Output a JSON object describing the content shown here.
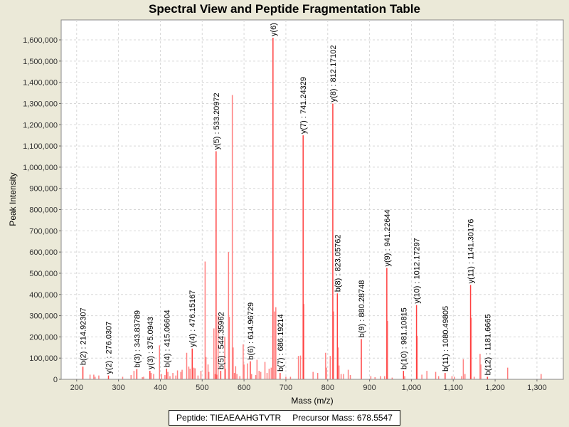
{
  "chart_data": {
    "type": "bar",
    "title": "Spectral View and Peptide Fragmentation Table",
    "xlabel": "Mass (m/z)",
    "ylabel": "Peak Intensity",
    "xlim": [
      163,
      1363
    ],
    "ylim": [
      0,
      1694000
    ],
    "grid": true,
    "xticks": [
      200,
      300,
      400,
      500,
      600,
      700,
      800,
      900,
      1000,
      1100,
      1200,
      1300
    ],
    "xtick_labels": [
      "200",
      "300",
      "400",
      "500",
      "600",
      "700",
      "800",
      "900",
      "1,000",
      "1,100",
      "1,200",
      "1,300"
    ],
    "yticks": [
      0,
      100000,
      200000,
      300000,
      400000,
      500000,
      600000,
      700000,
      800000,
      900000,
      1000000,
      1100000,
      1200000,
      1300000,
      1400000,
      1500000,
      1600000
    ],
    "ytick_labels": [
      "0",
      "100,000",
      "200,000",
      "300,000",
      "400,000",
      "500,000",
      "600,000",
      "700,000",
      "800,000",
      "900,000",
      "1,000,000",
      "1,100,000",
      "1,200,000",
      "1,300,000",
      "1,400,000",
      "1,500,000",
      "1,600,000"
    ],
    "peak_color": "#ff4040",
    "labeled_peaks": [
      {
        "mz": 214.92307,
        "intensity": 60000,
        "label": "b(2) : 214.92307"
      },
      {
        "mz": 276.0307,
        "intensity": 18000,
        "label": "y(2) : 276.0307"
      },
      {
        "mz": 343.83789,
        "intensity": 48000,
        "label": "b(3) : 343.83789"
      },
      {
        "mz": 375.0943,
        "intensity": 40000,
        "label": "y(3) : 375.0943"
      },
      {
        "mz": 415.06604,
        "intensity": 50000,
        "label": "b(4) : 415.06604"
      },
      {
        "mz": 476.15167,
        "intensity": 145000,
        "label": "y(4) : 476.15167"
      },
      {
        "mz": 533.20972,
        "intensity": 1075000,
        "label": "y(5) : 533.20972"
      },
      {
        "mz": 544.35962,
        "intensity": 40000,
        "label": "b(5) : 544.35962"
      },
      {
        "mz": 614.96729,
        "intensity": 85000,
        "label": "b(6) : 614.96729"
      },
      {
        "mz": 669.2,
        "intensity": 1610000,
        "label": "y(6)"
      },
      {
        "mz": 686.19214,
        "intensity": 30000,
        "label": "b(7) : 686.19214"
      },
      {
        "mz": 741.24329,
        "intensity": 1150000,
        "label": "y(7) : 741.24329"
      },
      {
        "mz": 812.17102,
        "intensity": 1300000,
        "label": "y(8) : 812.17102"
      },
      {
        "mz": 823.05762,
        "intensity": 405000,
        "label": "b(8) : 823.05762"
      },
      {
        "mz": 880.28748,
        "intensity": 190000,
        "label": "b(9) : 880.28748"
      },
      {
        "mz": 941.22644,
        "intensity": 525000,
        "label": "y(9) : 941.22644"
      },
      {
        "mz": 981.10815,
        "intensity": 40000,
        "label": "b(10) : 981.10815"
      },
      {
        "mz": 1012.17297,
        "intensity": 350000,
        "label": "y(10) : 1012.17297"
      },
      {
        "mz": 1080.49805,
        "intensity": 30000,
        "label": "b(11) : 1080.49805"
      },
      {
        "mz": 1141.30176,
        "intensity": 445000,
        "label": "y(11) : 1141.30176"
      },
      {
        "mz": 1181.6665,
        "intensity": 12000,
        "label": "b(12) : 1181.6665"
      }
    ],
    "other_peaks": [
      [
        232,
        22000
      ],
      [
        241,
        22000
      ],
      [
        244,
        12000
      ],
      [
        253,
        18000
      ],
      [
        310,
        12000
      ],
      [
        330,
        20000
      ],
      [
        337,
        40000
      ],
      [
        357,
        10000
      ],
      [
        360,
        12000
      ],
      [
        378,
        30000
      ],
      [
        384,
        25000
      ],
      [
        398,
        160000
      ],
      [
        403,
        25000
      ],
      [
        411,
        20000
      ],
      [
        418,
        35000
      ],
      [
        423,
        15000
      ],
      [
        430,
        30000
      ],
      [
        437,
        18000
      ],
      [
        441,
        42000
      ],
      [
        449,
        35000
      ],
      [
        452,
        45000
      ],
      [
        463,
        125000
      ],
      [
        468,
        60000
      ],
      [
        471,
        50000
      ],
      [
        480,
        55000
      ],
      [
        483,
        52000
      ],
      [
        490,
        18000
      ],
      [
        497,
        40000
      ],
      [
        507,
        555000
      ],
      [
        509,
        105000
      ],
      [
        514,
        70000
      ],
      [
        516,
        35000
      ],
      [
        528,
        240000
      ],
      [
        531,
        25000
      ],
      [
        535,
        22000
      ],
      [
        538,
        300000
      ],
      [
        554,
        200000
      ],
      [
        556,
        50000
      ],
      [
        563,
        600000
      ],
      [
        565,
        295000
      ],
      [
        572,
        1340000
      ],
      [
        574,
        150000
      ],
      [
        577,
        30000
      ],
      [
        580,
        62000
      ],
      [
        583,
        25000
      ],
      [
        590,
        15000
      ],
      [
        598,
        165000
      ],
      [
        600,
        70000
      ],
      [
        608,
        75000
      ],
      [
        618,
        25000
      ],
      [
        628,
        20000
      ],
      [
        631,
        92000
      ],
      [
        636,
        40000
      ],
      [
        640,
        35000
      ],
      [
        650,
        82000
      ],
      [
        655,
        30000
      ],
      [
        660,
        50000
      ],
      [
        665,
        55000
      ],
      [
        673,
        320000
      ],
      [
        676,
        340000
      ],
      [
        700,
        12000
      ],
      [
        711,
        12000
      ],
      [
        730,
        110000
      ],
      [
        735,
        112000
      ],
      [
        743,
        355000
      ],
      [
        765,
        35000
      ],
      [
        776,
        30000
      ],
      [
        795,
        125000
      ],
      [
        797,
        55000
      ],
      [
        806,
        110000
      ],
      [
        814,
        320000
      ],
      [
        825,
        150000
      ],
      [
        827,
        65000
      ],
      [
        832,
        25000
      ],
      [
        838,
        25000
      ],
      [
        849,
        45000
      ],
      [
        854,
        20000
      ],
      [
        903,
        15000
      ],
      [
        913,
        10000
      ],
      [
        926,
        15000
      ],
      [
        936,
        15000
      ],
      [
        943,
        275000
      ],
      [
        954,
        8000
      ],
      [
        984,
        15000
      ],
      [
        1014,
        205000
      ],
      [
        1025,
        22000
      ],
      [
        1037,
        40000
      ],
      [
        1058,
        35000
      ],
      [
        1065,
        15000
      ],
      [
        1097,
        15000
      ],
      [
        1103,
        12000
      ],
      [
        1120,
        15000
      ],
      [
        1124,
        95000
      ],
      [
        1128,
        25000
      ],
      [
        1143,
        290000
      ],
      [
        1150,
        12000
      ],
      [
        1164,
        120000
      ],
      [
        1166,
        70000
      ],
      [
        1230,
        55000
      ],
      [
        1310,
        25000
      ]
    ]
  },
  "legend": {
    "peptide": "Peptide: TIEAEAAHGTVTR",
    "precursor": "Precursor Mass: 678.5547"
  }
}
